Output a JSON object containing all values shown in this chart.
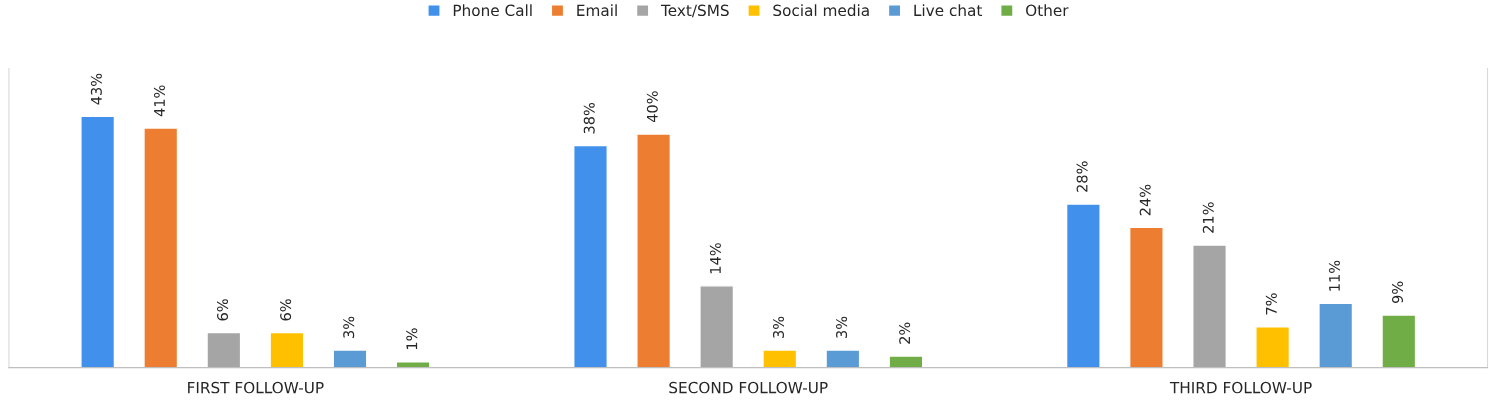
{
  "chart_data": {
    "type": "bar",
    "categories": [
      "FIRST FOLLOW-UP",
      "SECOND FOLLOW-UP",
      "THIRD FOLLOW-UP"
    ],
    "series": [
      {
        "name": "Phone Call",
        "color": "#4191ec",
        "values": [
          43,
          38,
          28
        ],
        "value_labels": [
          "43%",
          "38%",
          "28%"
        ]
      },
      {
        "name": "Email",
        "color": "#ed7d31",
        "values": [
          41,
          40,
          24
        ],
        "value_labels": [
          "41%",
          "40%",
          "24%"
        ]
      },
      {
        "name": "Text/SMS",
        "color": "#a5a5a5",
        "values": [
          6,
          14,
          21
        ],
        "value_labels": [
          "6%",
          "14%",
          "21%"
        ]
      },
      {
        "name": "Social media",
        "color": "#ffc000",
        "values": [
          6,
          3,
          7
        ],
        "value_labels": [
          "6%",
          "3%",
          "7%"
        ]
      },
      {
        "name": "Live chat",
        "color": "#5b9bd5",
        "values": [
          3,
          3,
          11
        ],
        "value_labels": [
          "3%",
          "3%",
          "11%"
        ]
      },
      {
        "name": "Other",
        "color": "#70ad47",
        "values": [
          1,
          2,
          9
        ],
        "value_labels": [
          "1%",
          "2%",
          "9%"
        ]
      }
    ],
    "legend": "top",
    "grid": false,
    "tick_labels": "x"
  }
}
